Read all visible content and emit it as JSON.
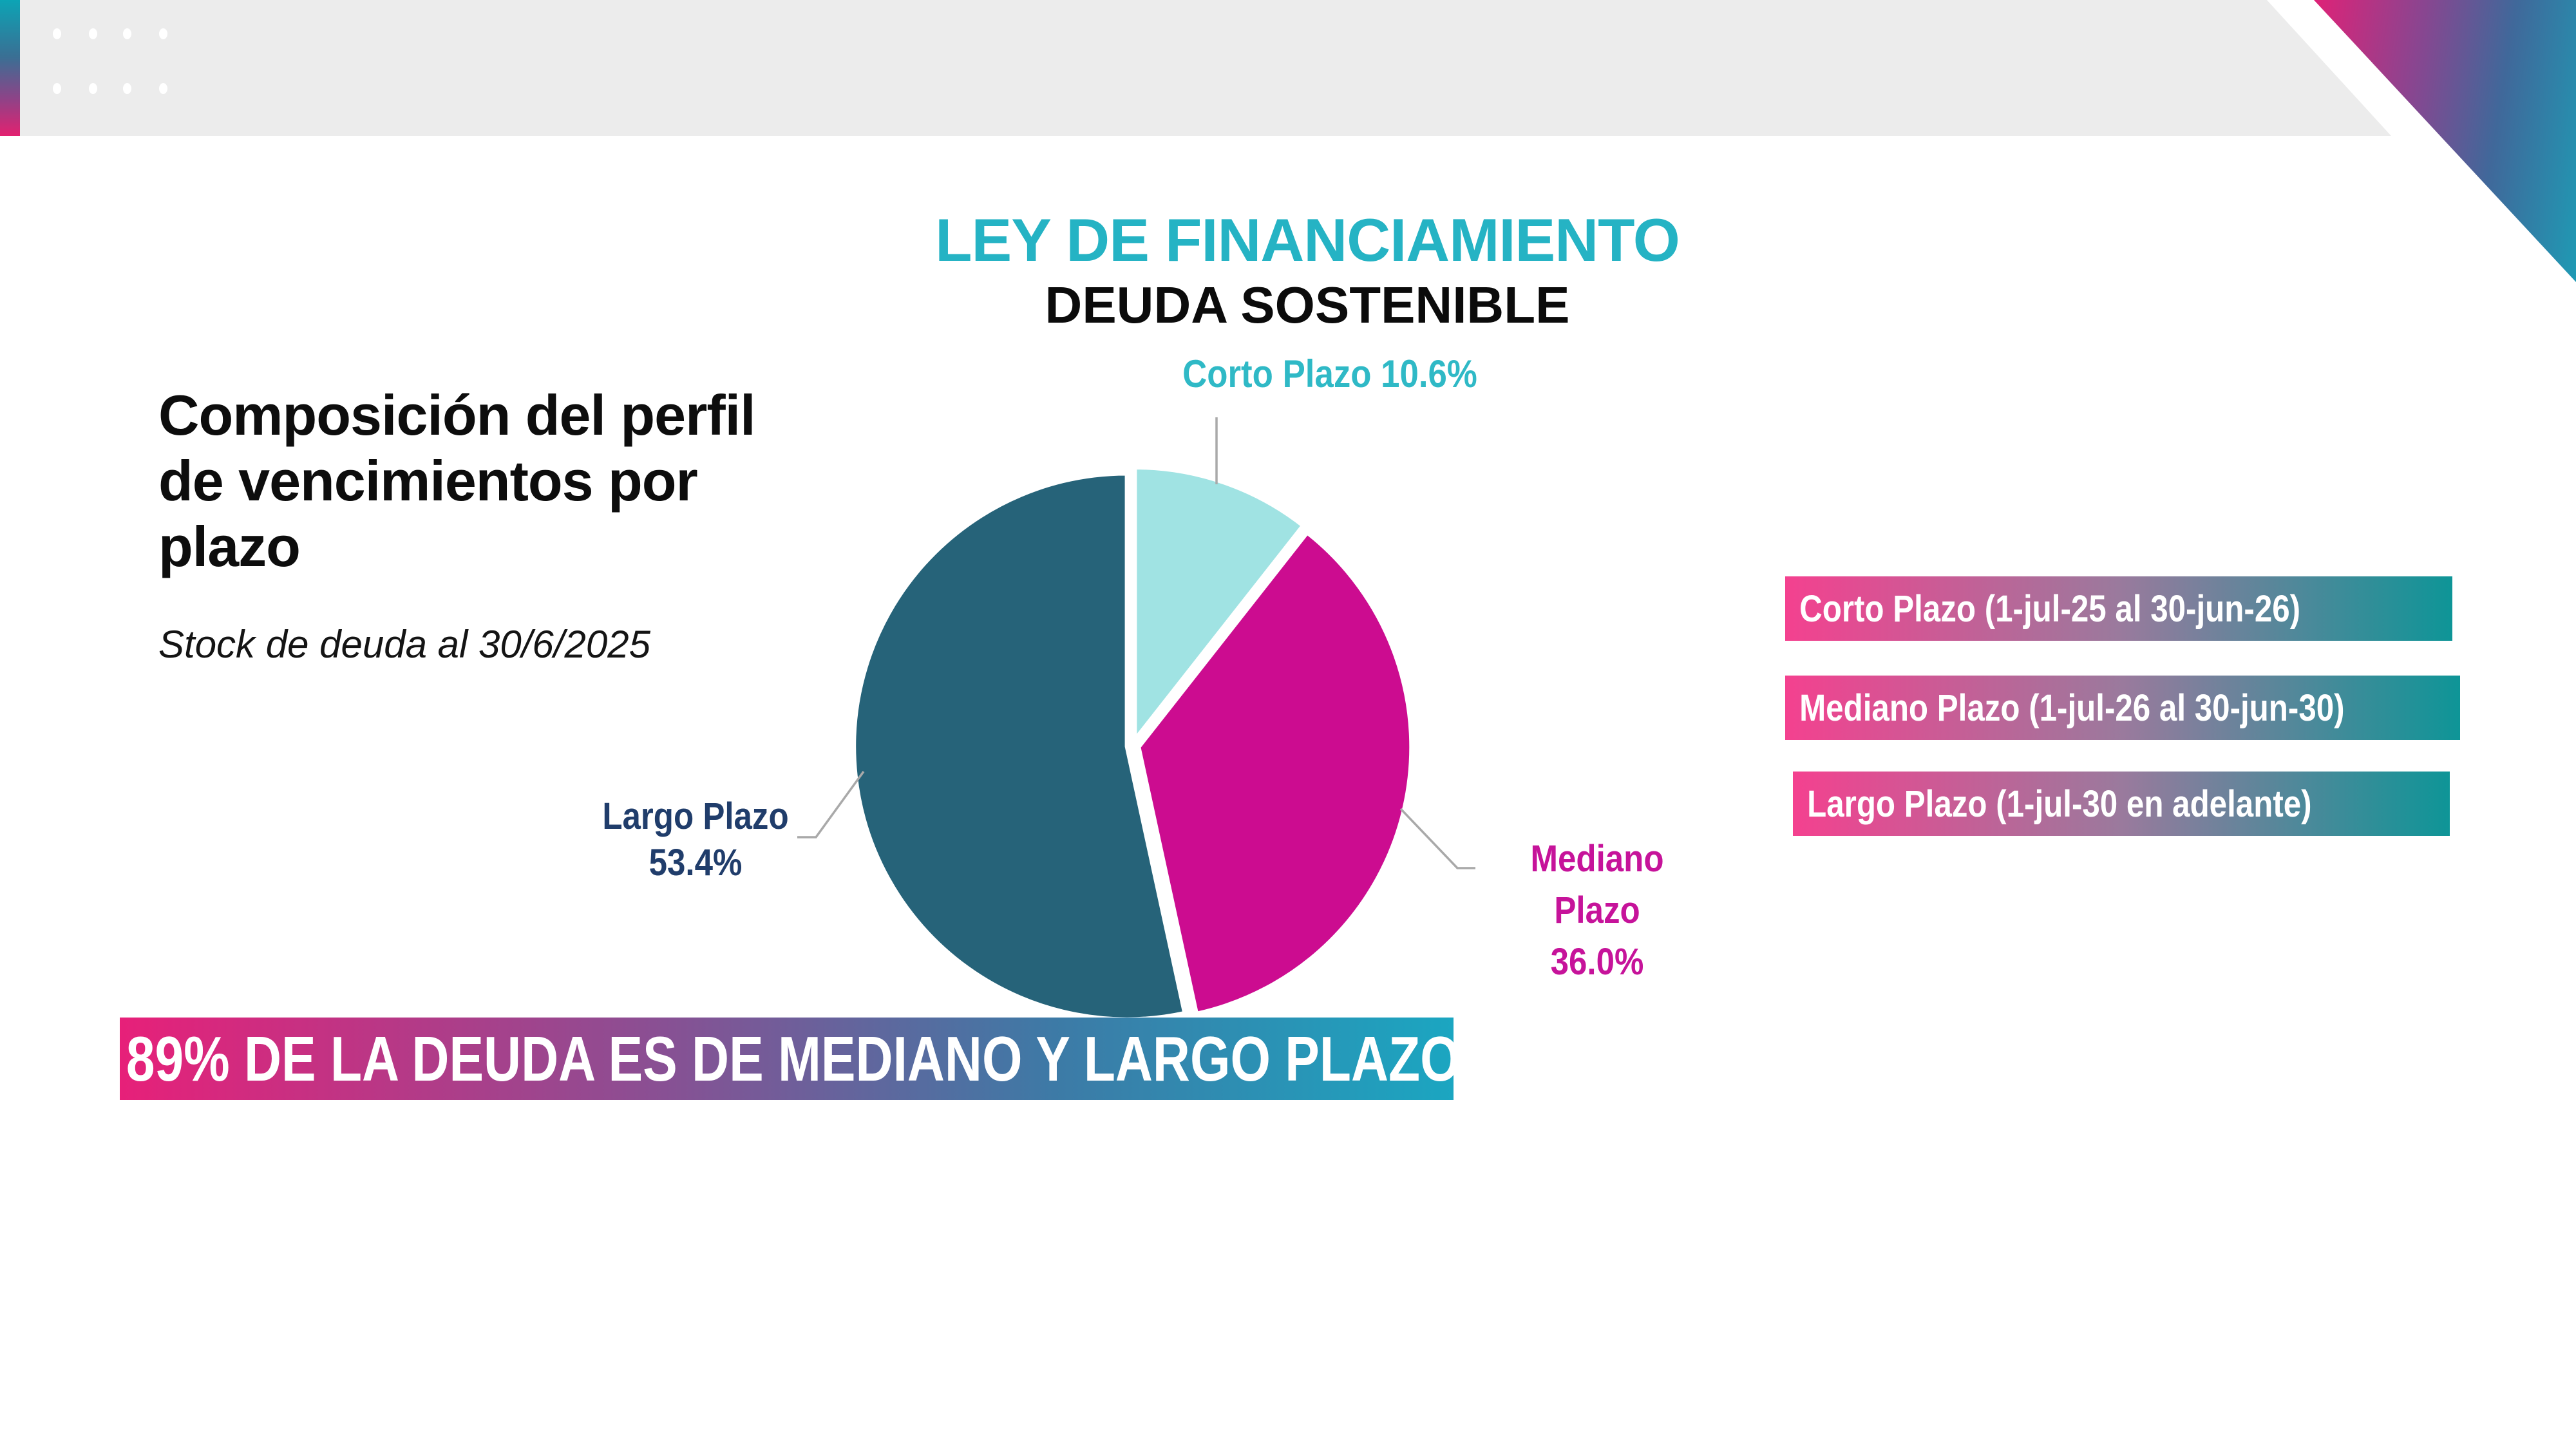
{
  "slide": {
    "title": "LEY DE FINANCIAMIENTO",
    "subtitle": "DEUDA SOSTENIBLE",
    "left_heading": "Composición del perfil\nde vencimientos por\nplazo",
    "left_subheading": "Stock de deuda al 30/6/2025",
    "banner": "89% DE LA DEUDA ES DE MEDIANO Y LARGO PLAZO"
  },
  "chart_data": {
    "type": "pie",
    "title": "LEY DE FINANCIAMIENTO",
    "subtitle": "DEUDA SOSTENIBLE",
    "categories": [
      "Corto Plazo",
      "Mediano Plazo",
      "Largo Plazo"
    ],
    "values": [
      10.6,
      36.0,
      53.4
    ],
    "unit": "%",
    "colors": [
      "#a0e3e3",
      "#cc0c90",
      "#266379"
    ],
    "start_angle_deg": 0,
    "direction": "clockwise",
    "callouts": [
      "Corto Plazo 10.6%",
      "Mediano Plazo\n36.0%",
      "Largo Plazo\n53.4%"
    ],
    "callout_colors": [
      "#2fb9c6",
      "#c6139a",
      "#203d6b"
    ],
    "legend_position": "right"
  },
  "legend": {
    "items": [
      {
        "label": "Corto Plazo (1-jul-25 al 30-jun-26)"
      },
      {
        "label": "Mediano Plazo (1-jul-26 al 30-jun-30)"
      },
      {
        "label": "Largo Plazo (1-jul-30 en adelante)"
      }
    ]
  },
  "colors": {
    "title_teal": "#25b3c4",
    "slice_corto": "#a0e3e3",
    "slice_mediano": "#cc0c90",
    "slice_largo": "#266379",
    "banner_gradient_left": "#e72079",
    "banner_gradient_right": "#1ba6c1",
    "pill_gradient_left": "#f4418f",
    "pill_gradient_right": "#0e9597",
    "header_bar_gray": "#ececec",
    "leader_line_gray": "#a9a9a9"
  }
}
